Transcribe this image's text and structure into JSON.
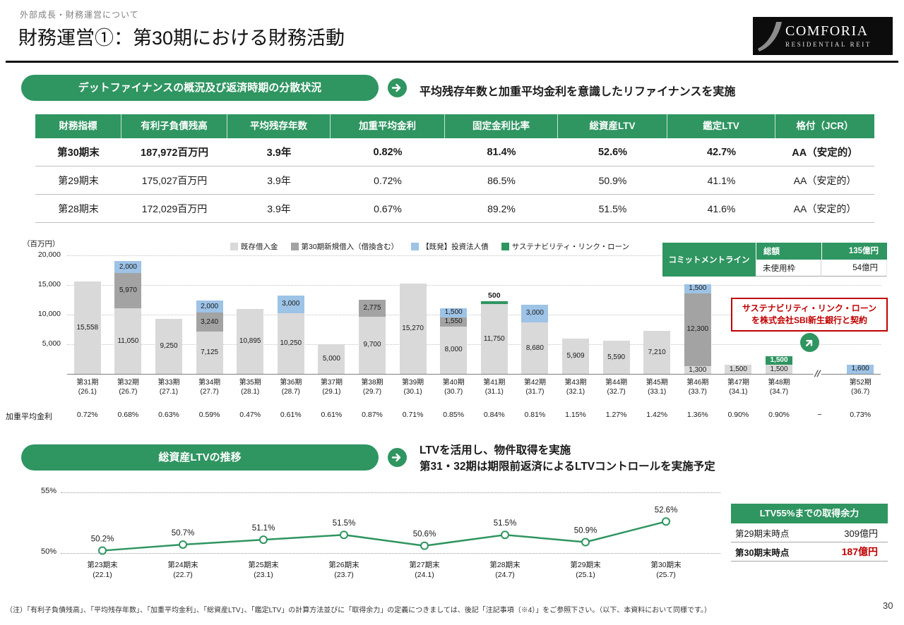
{
  "page": {
    "eyebrow": "外部成長・財務運営について",
    "title": "財務運営①：第30期における財務活動",
    "footnote": "（注）「有利子負債残高」、「平均残存年数」、「加重平均金利」、「総資産LTV」、「鑑定LTV」の計算方法並びに「取得余力」の定義につきましては、後記「注記事項（※4）」をご参照下さい。（以下、本資料において同様です。）",
    "page_number": "30"
  },
  "logo": {
    "line1": "COMFORIA",
    "line2": "RESIDENTIAL REIT"
  },
  "colors": {
    "brand_green": "#2f9561",
    "accent_red": "#c00000"
  },
  "sections": {
    "debt": {
      "banner": "デットファイナンスの概況及び返済時期の分散状況",
      "lead": "平均残存年数と加重平均金利を意識したリファイナンスを実施"
    },
    "ltv": {
      "banner": "総資産LTVの推移",
      "lead_lines": [
        "LTVを活用し、物件取得を実施",
        "第31・32期は期限前返済によるLTVコントロールを実施予定"
      ]
    }
  },
  "finance_table": {
    "headers": [
      "財務指標",
      "有利子負債残高",
      "平均残存年数",
      "加重平均金利",
      "固定金利比率",
      "総資産LTV",
      "鑑定LTV",
      "格付（JCR）"
    ],
    "rows": [
      {
        "label": "第30期末",
        "bold": true,
        "values": [
          "187,972百万円",
          "3.9年",
          "0.82%",
          "81.4%",
          "52.6%",
          "42.7%",
          "AA（安定的）"
        ]
      },
      {
        "label": "第29期末",
        "bold": false,
        "values": [
          "175,027百万円",
          "3.9年",
          "0.72%",
          "86.5%",
          "50.9%",
          "41.1%",
          "AA（安定的）"
        ]
      },
      {
        "label": "第28期末",
        "bold": false,
        "values": [
          "172,029百万円",
          "3.9年",
          "0.67%",
          "89.2%",
          "51.5%",
          "41.6%",
          "AA（安定的）"
        ]
      }
    ]
  },
  "chart_data": [
    {
      "type": "bar",
      "stacked": true,
      "unit": "（百万円）",
      "ylim": [
        0,
        20000
      ],
      "yticks": [
        {
          "v": 20000,
          "label": "20,000"
        },
        {
          "v": 15000,
          "label": "15,000"
        },
        {
          "v": 10000,
          "label": "10,000"
        },
        {
          "v": 5000,
          "label": "5,000"
        }
      ],
      "rate_row_label": "加重平均金利",
      "legend": [
        {
          "key": "existing",
          "label": "既存借入金",
          "color": "#d9d9d9"
        },
        {
          "key": "new",
          "label": "第30期新規借入（借換含む）",
          "color": "#a3a3a3"
        },
        {
          "key": "bond",
          "label": "【既発】投資法人債",
          "color": "#9dc3e6"
        },
        {
          "key": "sll",
          "label": "サステナビリティ・リンク・ローン",
          "color": "#2f9561"
        }
      ],
      "bars": [
        {
          "period": "第31期",
          "date": "(26.1)",
          "rate": "0.72%",
          "segments": [
            {
              "key": "existing",
              "value": 15558,
              "label": "15,558"
            }
          ]
        },
        {
          "period": "第32期",
          "date": "(26.7)",
          "rate": "0.68%",
          "segments": [
            {
              "key": "existing",
              "value": 11050,
              "label": "11,050"
            },
            {
              "key": "new",
              "value": 5970,
              "label": "5,970"
            },
            {
              "key": "bond",
              "value": 2000,
              "label": "2,000"
            }
          ]
        },
        {
          "period": "第33期",
          "date": "(27.1)",
          "rate": "0.63%",
          "segments": [
            {
              "key": "existing",
              "value": 9250,
              "label": "9,250"
            }
          ]
        },
        {
          "period": "第34期",
          "date": "(27.7)",
          "rate": "0.59%",
          "segments": [
            {
              "key": "existing",
              "value": 7125,
              "label": "7,125"
            },
            {
              "key": "new",
              "value": 3240,
              "label": "3,240"
            },
            {
              "key": "bond",
              "value": 2000,
              "label": "2,000"
            }
          ]
        },
        {
          "period": "第35期",
          "date": "(28.1)",
          "rate": "0.47%",
          "segments": [
            {
              "key": "existing",
              "value": 10895,
              "label": "10,895"
            }
          ]
        },
        {
          "period": "第36期",
          "date": "(28.7)",
          "rate": "0.61%",
          "segments": [
            {
              "key": "existing",
              "value": 10250,
              "label": "10,250"
            },
            {
              "key": "bond",
              "value": 3000,
              "label": "3,000"
            }
          ]
        },
        {
          "period": "第37期",
          "date": "(29.1)",
          "rate": "0.61%",
          "segments": [
            {
              "key": "existing",
              "value": 5000,
              "label": "5,000"
            }
          ]
        },
        {
          "period": "第38期",
          "date": "(29.7)",
          "rate": "0.87%",
          "segments": [
            {
              "key": "existing",
              "value": 9700,
              "label": "9,700"
            },
            {
              "key": "new",
              "value": 2775,
              "label": "2,775"
            }
          ]
        },
        {
          "period": "第39期",
          "date": "(30.1)",
          "rate": "0.71%",
          "segments": [
            {
              "key": "existing",
              "value": 15270,
              "label": "15,270"
            }
          ]
        },
        {
          "period": "第40期",
          "date": "(30.7)",
          "rate": "0.85%",
          "segments": [
            {
              "key": "existing",
              "value": 8000,
              "label": "8,000"
            },
            {
              "key": "new",
              "value": 1550,
              "label": "1,550"
            },
            {
              "key": "bond",
              "value": 1500,
              "label": "1,500"
            }
          ]
        },
        {
          "period": "第41期",
          "date": "(31.1)",
          "rate": "0.84%",
          "segments": [
            {
              "key": "existing",
              "value": 11750,
              "label": "11,750"
            },
            {
              "key": "sll",
              "value": 500,
              "label": "500",
              "label_pos": "above"
            }
          ]
        },
        {
          "period": "第42期",
          "date": "(31.7)",
          "rate": "0.81%",
          "segments": [
            {
              "key": "existing",
              "value": 8680,
              "label": "8,680"
            },
            {
              "key": "bond",
              "value": 3000,
              "label": "3,000"
            }
          ]
        },
        {
          "period": "第43期",
          "date": "(32.1)",
          "rate": "1.15%",
          "segments": [
            {
              "key": "existing",
              "value": 5909,
              "label": "5,909"
            }
          ]
        },
        {
          "period": "第44期",
          "date": "(32.7)",
          "rate": "1.27%",
          "segments": [
            {
              "key": "existing",
              "value": 5590,
              "label": "5,590"
            }
          ]
        },
        {
          "period": "第45期",
          "date": "(33.1)",
          "rate": "1.42%",
          "segments": [
            {
              "key": "existing",
              "value": 7210,
              "label": "7,210"
            }
          ]
        },
        {
          "period": "第46期",
          "date": "(33.7)",
          "rate": "1.36%",
          "segments": [
            {
              "key": "existing",
              "value": 1300,
              "label": "1,300"
            },
            {
              "key": "new",
              "value": 12300,
              "label": "12,300"
            },
            {
              "key": "bond",
              "value": 1500,
              "label": "1,500"
            }
          ]
        },
        {
          "period": "第47期",
          "date": "(34.1)",
          "rate": "0.90%",
          "segments": [
            {
              "key": "existing",
              "value": 1500,
              "label": "1,500"
            }
          ]
        },
        {
          "period": "第48期",
          "date": "(34.7)",
          "rate": "0.90%",
          "segments": [
            {
              "key": "existing",
              "value": 1500,
              "label": "1,500"
            },
            {
              "key": "sll",
              "value": 1500,
              "label": "1,500"
            }
          ]
        },
        {
          "break": true,
          "rate": "−"
        },
        {
          "period": "第52期",
          "date": "(36.7)",
          "rate": "0.73%",
          "segments": [
            {
              "key": "bond",
              "value": 1600,
              "label": "1,600"
            }
          ]
        }
      ]
    },
    {
      "type": "line",
      "title": "総資産LTVの推移",
      "color": "#2f9561",
      "ylim": [
        50,
        55
      ],
      "yticks": [
        {
          "v": 55,
          "label": "55%"
        },
        {
          "v": 50,
          "label": "50%"
        }
      ],
      "points": [
        {
          "label": "第23期末",
          "date": "(22.1)",
          "value": 50.2,
          "display": "50.2%"
        },
        {
          "label": "第24期末",
          "date": "(22.7)",
          "value": 50.7,
          "display": "50.7%"
        },
        {
          "label": "第25期末",
          "date": "(23.1)",
          "value": 51.1,
          "display": "51.1%"
        },
        {
          "label": "第26期末",
          "date": "(23.7)",
          "value": 51.5,
          "display": "51.5%"
        },
        {
          "label": "第27期末",
          "date": "(24.1)",
          "value": 50.6,
          "display": "50.6%"
        },
        {
          "label": "第28期末",
          "date": "(24.7)",
          "value": 51.5,
          "display": "51.5%"
        },
        {
          "label": "第29期末",
          "date": "(25.1)",
          "value": 50.9,
          "display": "50.9%"
        },
        {
          "label": "第30期末",
          "date": "(25.7)",
          "value": 52.6,
          "display": "52.6%"
        }
      ]
    }
  ],
  "commitment": {
    "title": "コミットメントライン",
    "rows": [
      {
        "label": "総額",
        "value": "135億円",
        "style": "header"
      },
      {
        "label": "未使用枠",
        "value": "54億円",
        "style": "plain"
      }
    ]
  },
  "sll_note": {
    "lines": [
      "サステナビリティ・リンク・ローン",
      "を株式会社SBI新生銀行と契約"
    ]
  },
  "ltv_capacity": {
    "title": "LTV55%までの取得余力",
    "rows": [
      {
        "label": "第29期末時点",
        "value": "309億円",
        "highlight": false
      },
      {
        "label": "第30期末時点",
        "value": "187億円",
        "highlight": true
      }
    ]
  }
}
